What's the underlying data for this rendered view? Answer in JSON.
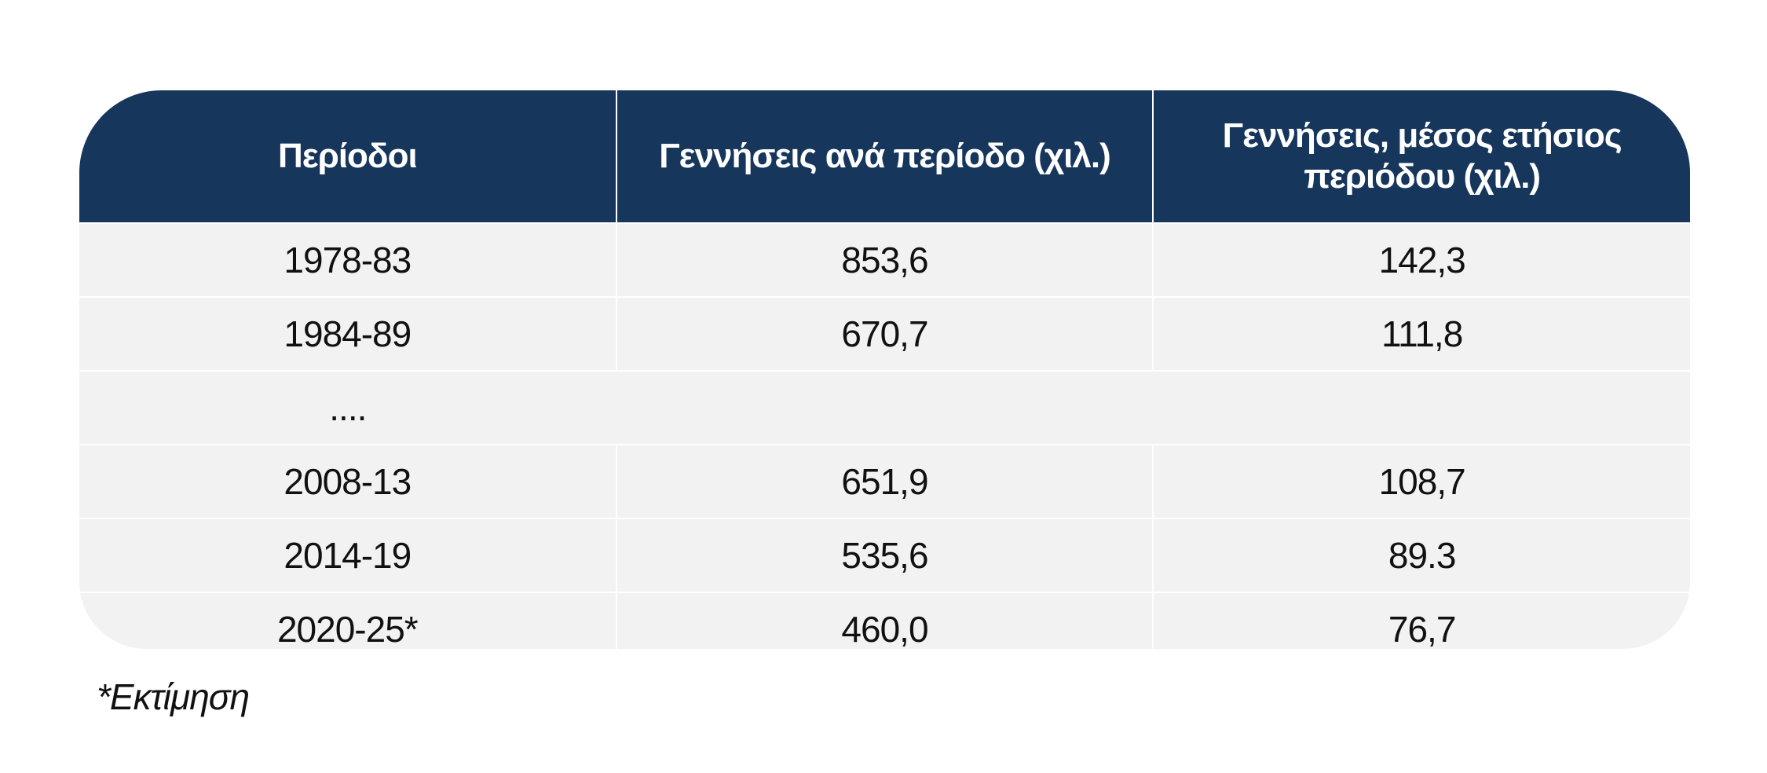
{
  "table": {
    "header": [
      "Περίοδοι",
      "Γεννήσεις ανά περίοδο (χιλ.)",
      "Γεννήσεις, μέσος ετήσιος περιόδου (χιλ.)"
    ],
    "rows": [
      [
        "1978-83",
        "853,6",
        "142,3"
      ],
      [
        "1984-89",
        "670,7",
        "111,8"
      ],
      [
        "...."
      ],
      [
        "2008-13",
        "651,9",
        "108,7"
      ],
      [
        "2014-19",
        "535,6",
        "89.3"
      ],
      [
        "2020-25*",
        "460,0",
        "76,7"
      ]
    ]
  },
  "footnote": "*Εκτίμηση"
}
